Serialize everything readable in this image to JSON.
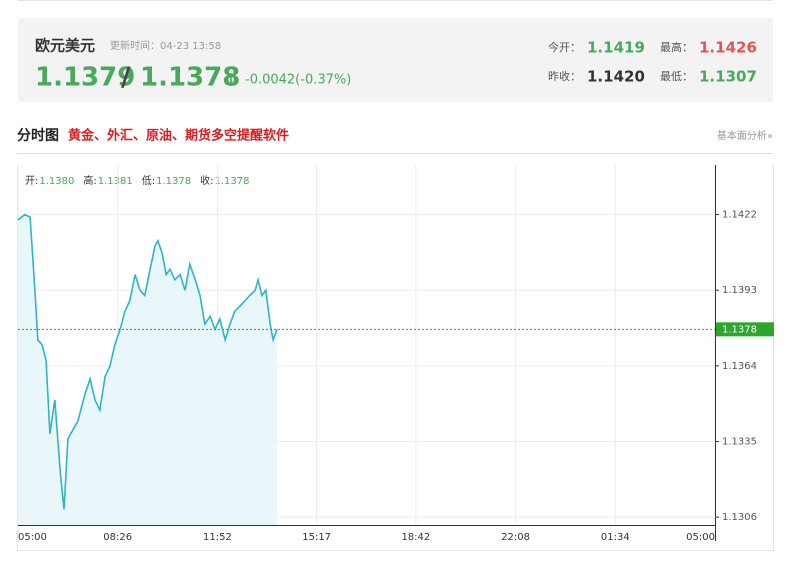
{
  "header": {
    "title": "欧元美元",
    "update_time": "更新时间：04-23 13:58",
    "bid": "1.1379",
    "separator": "/",
    "ask": "1.1378",
    "change": "-0.0042(-0.37%)",
    "stats": [
      {
        "label": "今开：",
        "value": "1.1419"
      },
      {
        "label": "最高：",
        "value": "1.1426"
      },
      {
        "label": "昨收：",
        "value": "1.1420"
      },
      {
        "label": "最低：",
        "value": "1.1307"
      }
    ]
  },
  "section": {
    "title": "分时图",
    "promo": "黄金、外汇、原油、期货多空提醒软件",
    "link": "基本面分析»"
  },
  "chart_data": {
    "type": "line",
    "info": [
      {
        "label": "开:",
        "value": "1.1380"
      },
      {
        "label": "高:",
        "value": "1.1381"
      },
      {
        "label": "低:",
        "value": "1.1378"
      },
      {
        "label": "收:",
        "value": "1.1378"
      }
    ],
    "x": [
      0,
      14,
      25,
      35,
      41,
      50,
      58,
      66,
      76,
      87,
      95,
      103,
      112,
      124,
      138,
      149,
      159,
      169,
      180,
      190,
      200,
      211,
      221,
      231,
      242,
      252,
      262,
      273,
      283,
      289,
      298,
      306,
      314,
      324,
      335,
      345,
      355,
      366,
      376,
      386,
      397,
      407,
      417,
      428,
      438,
      448,
      459,
      469,
      479,
      490,
      496,
      504,
      512,
      521,
      527,
      535
    ],
    "series": [
      {
        "color": "#2db4c8",
        "values": [
          1.142,
          1.1422,
          1.1421,
          1.1393,
          1.1374,
          1.1372,
          1.1366,
          1.1338,
          1.1351,
          1.1324,
          1.1309,
          1.1336,
          1.1339,
          1.1343,
          1.1353,
          1.1359,
          1.1351,
          1.1347,
          1.136,
          1.1364,
          1.1372,
          1.1378,
          1.1385,
          1.1389,
          1.1399,
          1.1393,
          1.1391,
          1.1401,
          1.141,
          1.1412,
          1.1407,
          1.1399,
          1.1401,
          1.1397,
          1.1399,
          1.1393,
          1.1403,
          1.1397,
          1.1391,
          1.138,
          1.1383,
          1.1378,
          1.1382,
          1.1374,
          1.138,
          1.1385,
          1.1387,
          1.1389,
          1.1391,
          1.1393,
          1.1397,
          1.1391,
          1.1393,
          1.138,
          1.1374,
          1.1378
        ]
      }
    ],
    "current": 1.1378,
    "xlim": [
      0,
      1440
    ],
    "xticks": [
      {
        "value": 0,
        "label": "05:00"
      },
      {
        "value": 206,
        "label": "08:26"
      },
      {
        "value": 412,
        "label": "11:52"
      },
      {
        "value": 617,
        "label": "15:17"
      },
      {
        "value": 822,
        "label": "18:42"
      },
      {
        "value": 1028,
        "label": "22:08"
      },
      {
        "value": 1234,
        "label": "01:34"
      },
      {
        "value": 1440,
        "label": "05:00"
      }
    ],
    "ylim": [
      1.1303,
      1.1441
    ],
    "yticks": [
      1.1306,
      1.1335,
      1.1364,
      1.1393,
      1.1422
    ],
    "grid": true
  }
}
